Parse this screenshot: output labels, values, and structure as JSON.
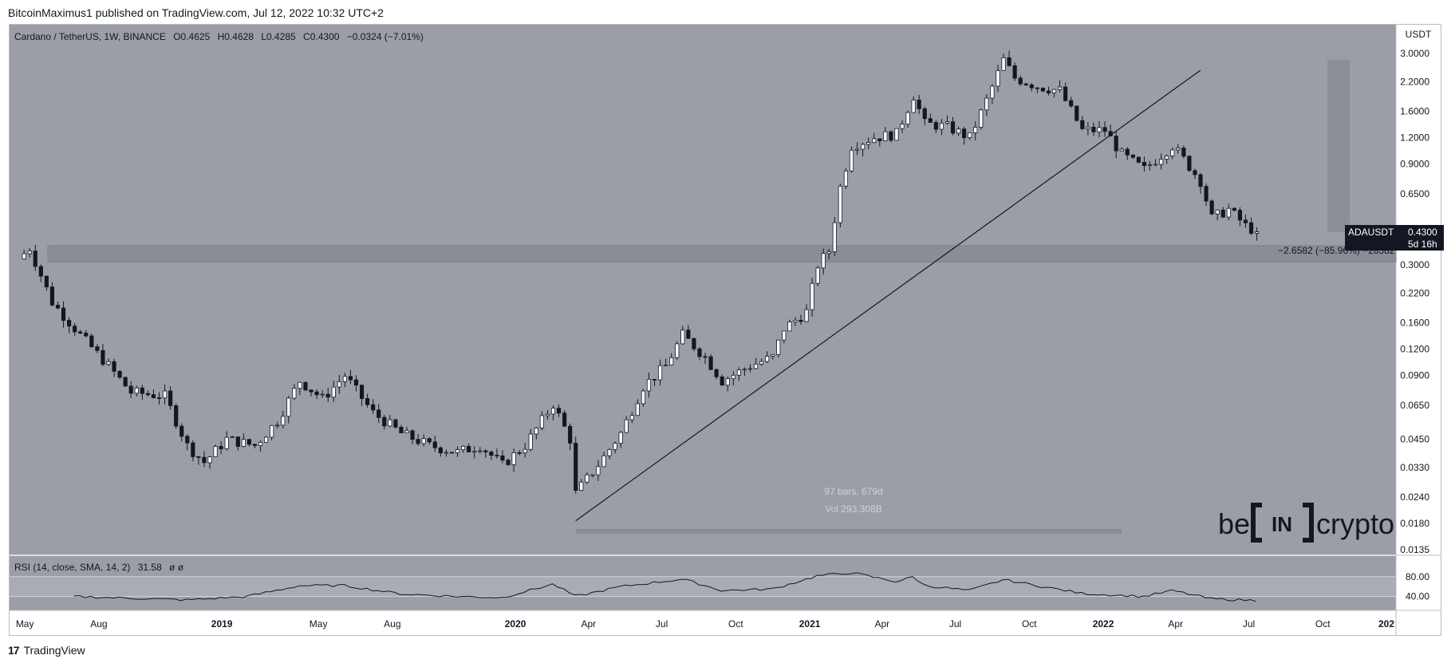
{
  "header": {
    "published": "BitcoinMaximus1 published on TradingView.com, Jul 12, 2022 10:32 UTC+2"
  },
  "footer": {
    "brand": "TradingView"
  },
  "legend": {
    "symbol": "Cardano / TetherUS, 1W, BINANCE",
    "o_label": "O",
    "o": "0.4625",
    "h_label": "H",
    "h": "0.4628",
    "l_label": "L",
    "l": "0.4285",
    "c_label": "C",
    "c": "0.4300",
    "change": "−0.0324 (−7.01%)"
  },
  "price_tag": {
    "symbol": "ADAUSDT",
    "price": "0.4300",
    "countdown": "5d 16h"
  },
  "measure": {
    "label": "−2.6582 (−85.96%) −26582"
  },
  "range_info": {
    "bars": "97 bars, 679d",
    "vol": "Vol 293.308B"
  },
  "watermark": {
    "be": "be",
    "in": "IN",
    "crypto": "crypto"
  },
  "rsi": {
    "label": "RSI (14, close, SMA, 14, 2)",
    "value": "31.58",
    "extra": "ø  ø",
    "ticks": [
      "80.00",
      "40.00"
    ]
  },
  "colors": {
    "plot_bg": "#9b9ea6",
    "up": "#ffffff",
    "down": "#131722",
    "band": "#8a8d95",
    "rsi_band": "#a9acb3"
  },
  "chart_data": {
    "type": "candlestick",
    "title": "Cardano / TetherUS, 1W, BINANCE",
    "y_scale": "log",
    "y_unit": "USDT",
    "y_ticks": [
      "3.0000",
      "2.2000",
      "1.6000",
      "1.2000",
      "0.9000",
      "0.6500",
      "0.3000",
      "0.2200",
      "0.1600",
      "0.1200",
      "0.0900",
      "0.0650",
      "0.0450",
      "0.0330",
      "0.0240",
      "0.0180",
      "0.0135"
    ],
    "x_ticks": [
      "May",
      "Aug",
      "2019",
      "May",
      "Aug",
      "2020",
      "Apr",
      "Jul",
      "Oct",
      "2021",
      "Apr",
      "Jul",
      "Oct",
      "2022",
      "Apr",
      "Jul",
      "Oct",
      "202"
    ],
    "x_range": [
      "2018-04-12",
      "2022-12-31"
    ],
    "last_price": 0.43,
    "support_zone": [
      0.31,
      0.37
    ],
    "anchors": [
      {
        "date": "2018-04-23",
        "price": 0.32
      },
      {
        "date": "2018-05-07",
        "price": 0.36
      },
      {
        "date": "2018-06-04",
        "price": 0.2
      },
      {
        "date": "2018-07-09",
        "price": 0.14
      },
      {
        "date": "2018-08-13",
        "price": 0.1
      },
      {
        "date": "2018-09-10",
        "price": 0.075
      },
      {
        "date": "2018-10-22",
        "price": 0.072
      },
      {
        "date": "2018-11-19",
        "price": 0.042
      },
      {
        "date": "2018-12-10",
        "price": 0.035
      },
      {
        "date": "2019-01-07",
        "price": 0.045
      },
      {
        "date": "2019-02-11",
        "price": 0.042
      },
      {
        "date": "2019-03-11",
        "price": 0.055
      },
      {
        "date": "2019-04-08",
        "price": 0.085
      },
      {
        "date": "2019-05-06",
        "price": 0.07
      },
      {
        "date": "2019-06-03",
        "price": 0.09
      },
      {
        "date": "2019-07-08",
        "price": 0.06
      },
      {
        "date": "2019-08-12",
        "price": 0.048
      },
      {
        "date": "2019-09-16",
        "price": 0.042
      },
      {
        "date": "2019-10-21",
        "price": 0.039
      },
      {
        "date": "2019-11-18",
        "price": 0.042
      },
      {
        "date": "2019-12-16",
        "price": 0.034
      },
      {
        "date": "2020-01-13",
        "price": 0.042
      },
      {
        "date": "2020-02-17",
        "price": 0.066
      },
      {
        "date": "2020-03-09",
        "price": 0.045
      },
      {
        "date": "2020-03-16",
        "price": 0.025
      },
      {
        "date": "2020-04-13",
        "price": 0.034
      },
      {
        "date": "2020-05-11",
        "price": 0.048
      },
      {
        "date": "2020-06-08",
        "price": 0.08
      },
      {
        "date": "2020-07-06",
        "price": 0.1
      },
      {
        "date": "2020-07-27",
        "price": 0.14
      },
      {
        "date": "2020-08-24",
        "price": 0.11
      },
      {
        "date": "2020-09-14",
        "price": 0.085
      },
      {
        "date": "2020-10-19",
        "price": 0.1
      },
      {
        "date": "2020-11-16",
        "price": 0.11
      },
      {
        "date": "2020-11-30",
        "price": 0.15
      },
      {
        "date": "2020-12-28",
        "price": 0.18
      },
      {
        "date": "2021-01-11",
        "price": 0.3
      },
      {
        "date": "2021-01-25",
        "price": 0.35
      },
      {
        "date": "2021-02-08",
        "price": 0.7
      },
      {
        "date": "2021-02-22",
        "price": 1.1
      },
      {
        "date": "2021-03-22",
        "price": 1.2
      },
      {
        "date": "2021-04-19",
        "price": 1.25
      },
      {
        "date": "2021-05-10",
        "price": 1.9
      },
      {
        "date": "2021-05-24",
        "price": 1.4
      },
      {
        "date": "2021-06-21",
        "price": 1.35
      },
      {
        "date": "2021-07-19",
        "price": 1.2
      },
      {
        "date": "2021-08-09",
        "price": 1.8
      },
      {
        "date": "2021-08-30",
        "price": 2.8
      },
      {
        "date": "2021-09-13",
        "price": 2.3
      },
      {
        "date": "2021-10-11",
        "price": 2.1
      },
      {
        "date": "2021-11-08",
        "price": 2.0
      },
      {
        "date": "2021-12-06",
        "price": 1.3
      },
      {
        "date": "2022-01-03",
        "price": 1.3
      },
      {
        "date": "2022-01-24",
        "price": 1.0
      },
      {
        "date": "2022-02-21",
        "price": 0.85
      },
      {
        "date": "2022-03-28",
        "price": 1.1
      },
      {
        "date": "2022-04-11",
        "price": 0.95
      },
      {
        "date": "2022-05-02",
        "price": 0.75
      },
      {
        "date": "2022-05-16",
        "price": 0.5
      },
      {
        "date": "2022-06-06",
        "price": 0.55
      },
      {
        "date": "2022-06-27",
        "price": 0.46
      },
      {
        "date": "2022-07-11",
        "price": 0.43
      }
    ],
    "trend_line": [
      {
        "date": "2020-03-16",
        "price": 0.0185
      },
      {
        "date": "2022-05-02",
        "price": 2.5
      }
    ],
    "rsi_series": [
      {
        "date": "2018-07-01",
        "rsi": 40
      },
      {
        "date": "2018-09-01",
        "rsi": 37
      },
      {
        "date": "2018-11-19",
        "rsi": 33
      },
      {
        "date": "2019-02-01",
        "rsi": 40
      },
      {
        "date": "2019-04-08",
        "rsi": 62
      },
      {
        "date": "2019-06-03",
        "rsi": 62
      },
      {
        "date": "2019-08-12",
        "rsi": 45
      },
      {
        "date": "2019-10-21",
        "rsi": 40
      },
      {
        "date": "2019-12-16",
        "rsi": 38
      },
      {
        "date": "2020-02-17",
        "rsi": 65
      },
      {
        "date": "2020-03-16",
        "rsi": 40
      },
      {
        "date": "2020-05-11",
        "rsi": 60
      },
      {
        "date": "2020-07-27",
        "rsi": 75
      },
      {
        "date": "2020-09-14",
        "rsi": 52
      },
      {
        "date": "2020-11-16",
        "rsi": 55
      },
      {
        "date": "2021-01-11",
        "rsi": 82
      },
      {
        "date": "2021-02-22",
        "rsi": 88
      },
      {
        "date": "2021-04-19",
        "rsi": 70
      },
      {
        "date": "2021-05-10",
        "rsi": 80
      },
      {
        "date": "2021-05-24",
        "rsi": 62
      },
      {
        "date": "2021-07-19",
        "rsi": 52
      },
      {
        "date": "2021-08-30",
        "rsi": 74
      },
      {
        "date": "2021-10-11",
        "rsi": 62
      },
      {
        "date": "2021-12-06",
        "rsi": 46
      },
      {
        "date": "2022-02-21",
        "rsi": 40
      },
      {
        "date": "2022-03-28",
        "rsi": 52
      },
      {
        "date": "2022-05-16",
        "rsi": 35
      },
      {
        "date": "2022-07-11",
        "rsi": 32
      }
    ]
  }
}
